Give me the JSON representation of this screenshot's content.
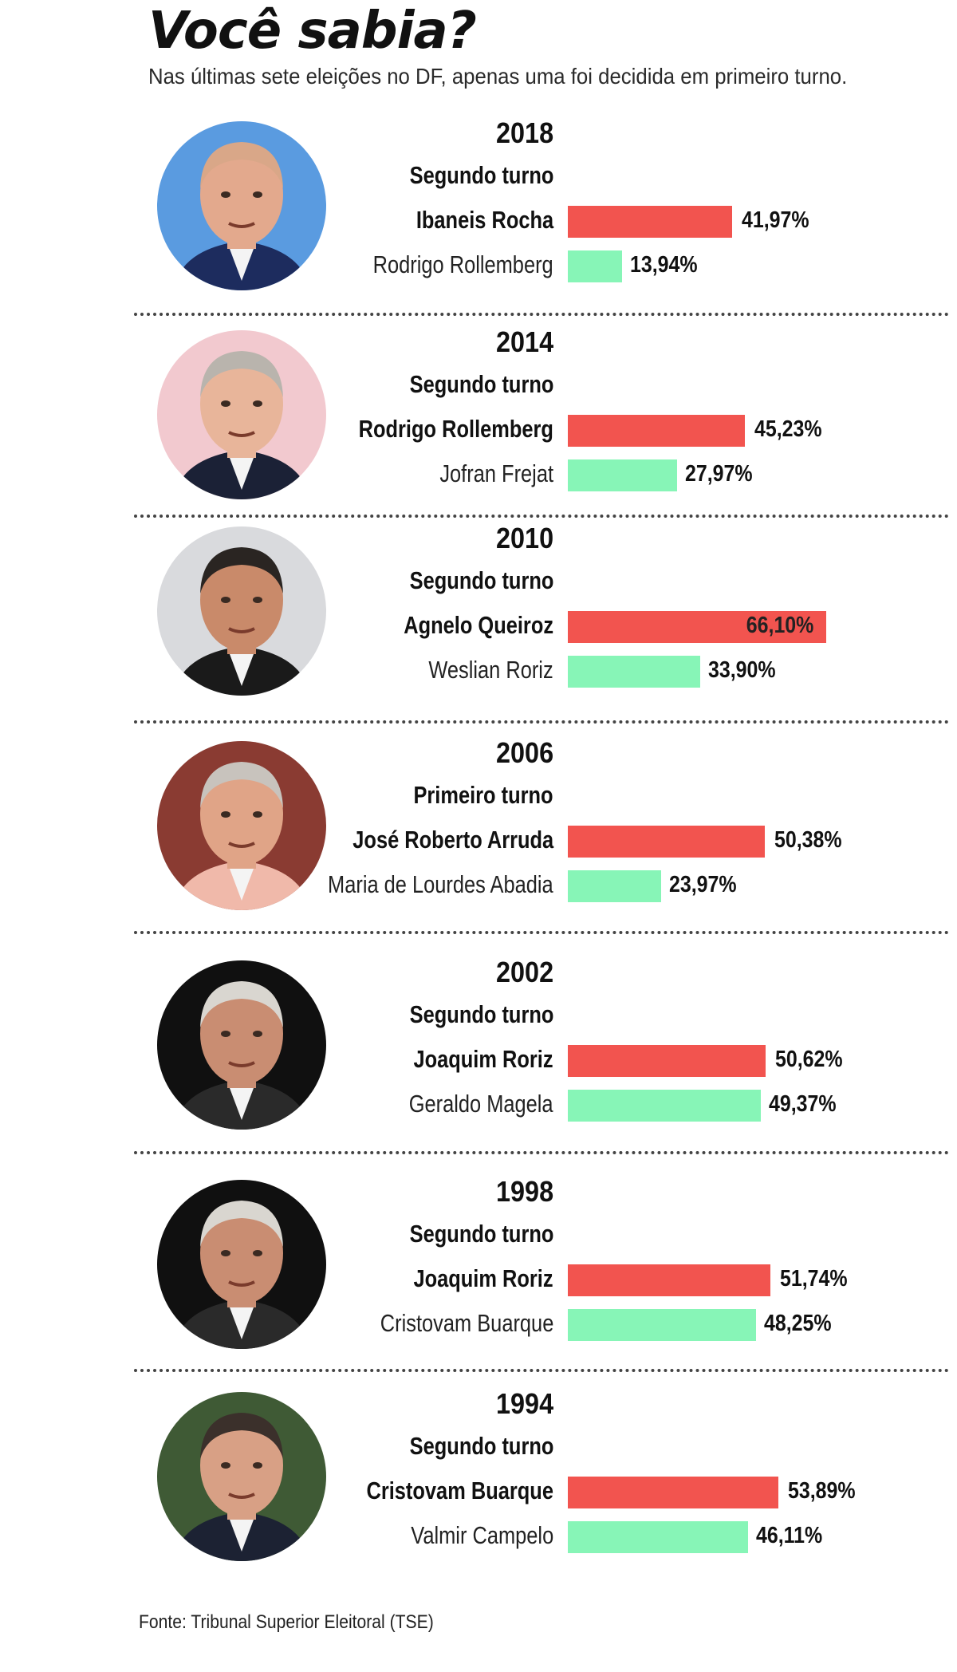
{
  "header": {
    "title": "Você sabia?",
    "subtitle": "Nas últimas sete eleições no DF, apenas uma foi decidida em primeiro turno."
  },
  "colors": {
    "winner": "#f2544f",
    "runner_up": "#87f5b7"
  },
  "chart_data": {
    "type": "bar",
    "orientation": "horizontal",
    "elections": [
      {
        "year": "2018",
        "round": "Segundo turno",
        "winner": {
          "name": "Ibaneis Rocha",
          "value": 41.97,
          "label": "41,97%"
        },
        "runner_up": {
          "name": "Rodrigo Rollemberg",
          "value": 13.94,
          "label": "13,94%"
        }
      },
      {
        "year": "2014",
        "round": "Segundo turno",
        "winner": {
          "name": "Rodrigo Rollemberg",
          "value": 45.23,
          "label": "45,23%"
        },
        "runner_up": {
          "name": "Jofran Frejat",
          "value": 27.97,
          "label": "27,97%"
        }
      },
      {
        "year": "2010",
        "round": "Segundo turno",
        "winner": {
          "name": "Agnelo Queiroz",
          "value": 66.1,
          "label": "66,10%"
        },
        "runner_up": {
          "name": "Weslian Roriz",
          "value": 33.9,
          "label": "33,90%"
        }
      },
      {
        "year": "2006",
        "round": "Primeiro turno",
        "winner": {
          "name": "José Roberto Arruda",
          "value": 50.38,
          "label": "50,38%"
        },
        "runner_up": {
          "name": "Maria de Lourdes Abadia",
          "value": 23.97,
          "label": "23,97%"
        }
      },
      {
        "year": "2002",
        "round": "Segundo turno",
        "winner": {
          "name": "Joaquim Roriz",
          "value": 50.62,
          "label": "50,62%"
        },
        "runner_up": {
          "name": "Geraldo Magela",
          "value": 49.37,
          "label": "49,37%"
        }
      },
      {
        "year": "1998",
        "round": "Segundo turno",
        "winner": {
          "name": "Joaquim Roriz",
          "value": 51.74,
          "label": "51,74%"
        },
        "runner_up": {
          "name": "Cristovam Buarque",
          "value": 48.25,
          "label": "48,25%"
        }
      },
      {
        "year": "1994",
        "round": "Segundo turno",
        "winner": {
          "name": "Cristovam Buarque",
          "value": 53.89,
          "label": "53,89%"
        },
        "runner_up": {
          "name": "Valmir Campelo",
          "value": 46.11,
          "label": "46,11%"
        }
      }
    ]
  },
  "portraits": [
    {
      "icon": "portrait-icon",
      "bg": "#5a9be0",
      "skin": "#e3a98d",
      "hair": "#d9a788",
      "suit": "#1d2c5e"
    },
    {
      "icon": "portrait-icon",
      "bg": "#f2c9cf",
      "skin": "#e8b59a",
      "hair": "#b9b4ad",
      "suit": "#1b2136"
    },
    {
      "icon": "portrait-icon",
      "bg": "#d9dadd",
      "skin": "#c98a6a",
      "hair": "#2a2522",
      "suit": "#1a1a1a"
    },
    {
      "icon": "portrait-icon",
      "bg": "#8a3b32",
      "skin": "#e0a487",
      "hair": "#c8c3bd",
      "suit": "#f0b9aa"
    },
    {
      "icon": "portrait-icon",
      "bg": "#101010",
      "skin": "#c98d72",
      "hair": "#d9d6d0",
      "suit": "#2a2a2a"
    },
    {
      "icon": "portrait-icon",
      "bg": "#101010",
      "skin": "#c98d72",
      "hair": "#d9d6d0",
      "suit": "#2a2a2a"
    },
    {
      "icon": "portrait-icon",
      "bg": "#3f5a35",
      "skin": "#d8a085",
      "hair": "#3b302b",
      "suit": "#1c2233"
    }
  ],
  "footer": {
    "source": "Fonte: Tribunal Superior Eleitoral (TSE)"
  }
}
